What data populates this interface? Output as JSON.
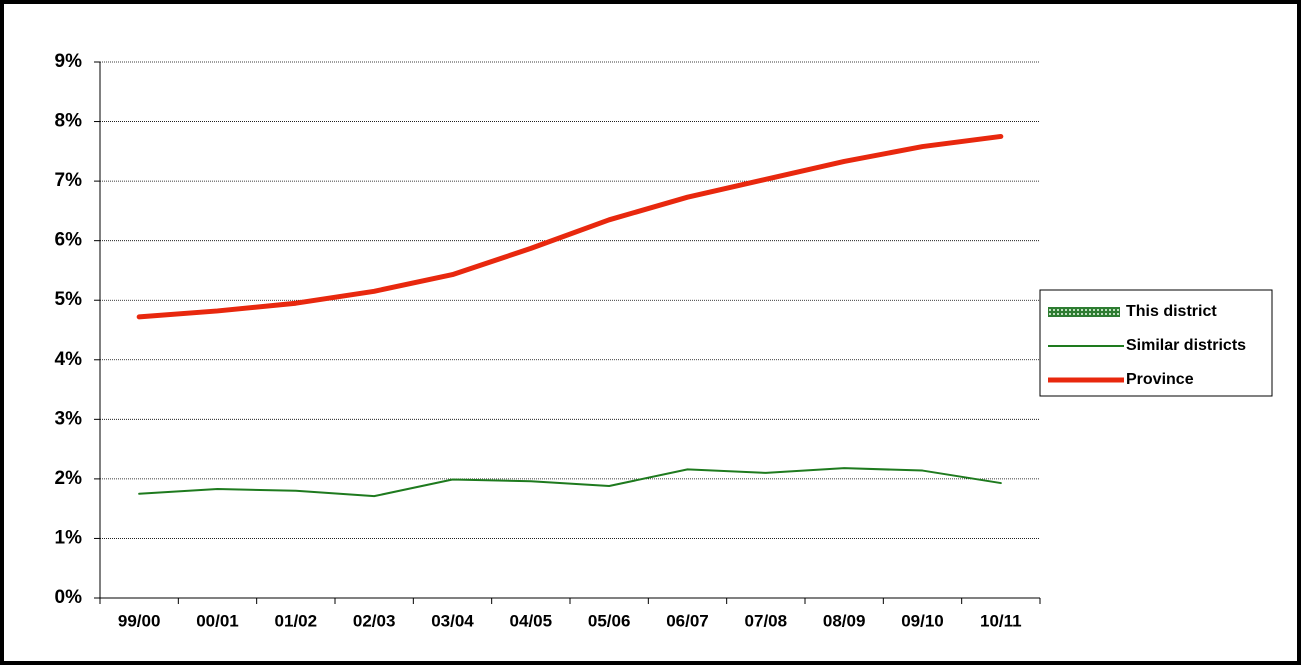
{
  "chart_data": {
    "type": "line",
    "categories": [
      "99/00",
      "00/01",
      "01/02",
      "02/03",
      "03/04",
      "04/05",
      "05/06",
      "06/07",
      "07/08",
      "08/09",
      "09/10",
      "10/11"
    ],
    "series": [
      {
        "name": "This district",
        "color": "#2e7d32",
        "style": "bar",
        "values": [
          null,
          null,
          null,
          null,
          null,
          null,
          null,
          null,
          null,
          null,
          null,
          null
        ]
      },
      {
        "name": "Similar districts",
        "color": "#1e7a1e",
        "style": "line",
        "width": 2,
        "values": [
          1.75,
          1.83,
          1.8,
          1.71,
          1.99,
          1.96,
          1.88,
          2.16,
          2.1,
          2.18,
          2.14,
          1.93
        ]
      },
      {
        "name": "Province",
        "color": "#e8280e",
        "style": "line",
        "width": 5,
        "values": [
          4.72,
          4.82,
          4.95,
          5.15,
          5.43,
          5.87,
          6.35,
          6.73,
          7.03,
          7.33,
          7.58,
          7.75
        ]
      }
    ],
    "ylim": [
      0,
      9
    ],
    "yticks": [
      {
        "value": 0,
        "label": "0%"
      },
      {
        "value": 1,
        "label": "1%"
      },
      {
        "value": 2,
        "label": "2%"
      },
      {
        "value": 3,
        "label": "3%"
      },
      {
        "value": 4,
        "label": "4%"
      },
      {
        "value": 5,
        "label": "5%"
      },
      {
        "value": 6,
        "label": "6%"
      },
      {
        "value": 7,
        "label": "7%"
      },
      {
        "value": 8,
        "label": "8%"
      },
      {
        "value": 9,
        "label": "9%"
      }
    ],
    "grid": true,
    "legend": "right"
  }
}
